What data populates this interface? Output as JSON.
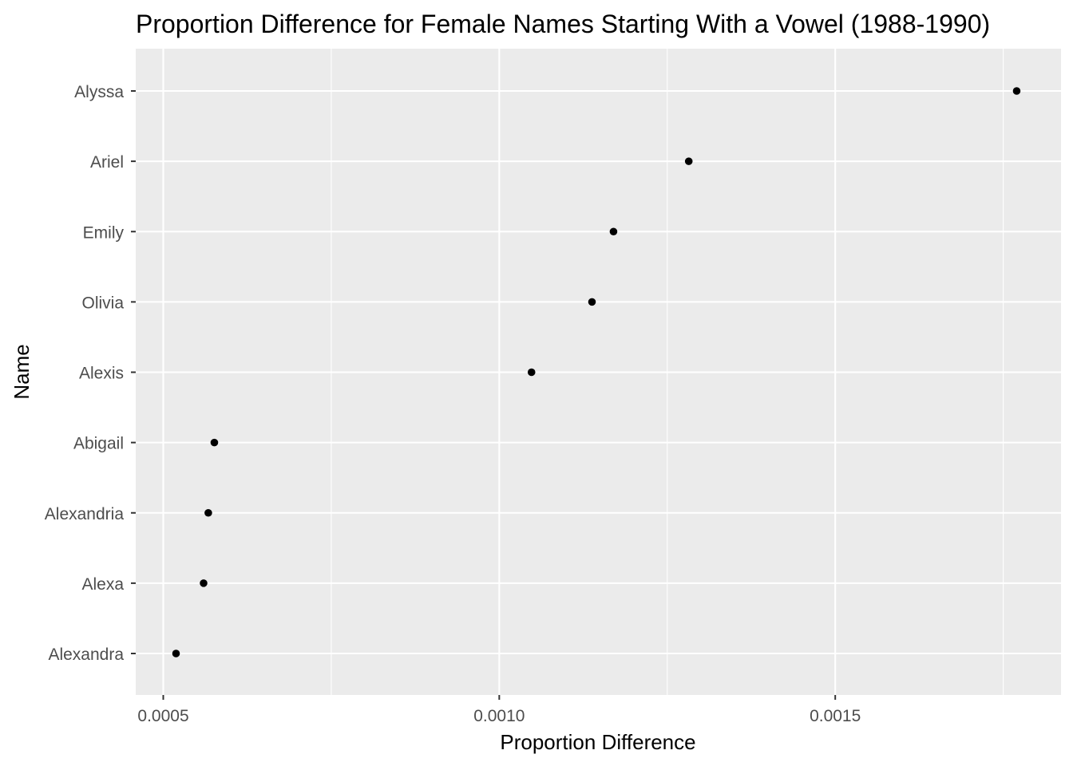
{
  "chart_data": {
    "type": "scatter",
    "title": "Proportion Difference for Female Names Starting With a Vowel (1988-1990)",
    "xlabel": "Proportion Difference",
    "ylabel": "Name",
    "xlim": [
      0.000459,
      0.001836
    ],
    "x_ticks": [
      0.0005,
      0.001,
      0.0015
    ],
    "x_tick_labels": [
      "0.0005",
      "0.0010",
      "0.0015"
    ],
    "x_minor_ticks": [
      0.00075,
      0.00125,
      0.00175
    ],
    "categories": [
      "Alyssa",
      "Ariel",
      "Emily",
      "Olivia",
      "Alexis",
      "Abigail",
      "Alexandria",
      "Alexa",
      "Alexandra"
    ],
    "values": [
      0.00177,
      0.001282,
      0.00117,
      0.001138,
      0.001048,
      0.000576,
      0.000567,
      0.00056,
      0.000519
    ],
    "grid": true,
    "legend": "none",
    "colors": {
      "panel": "#ebebeb",
      "grid": "#ffffff",
      "point": "#000000",
      "tick_label": "#4d4d4d"
    }
  }
}
